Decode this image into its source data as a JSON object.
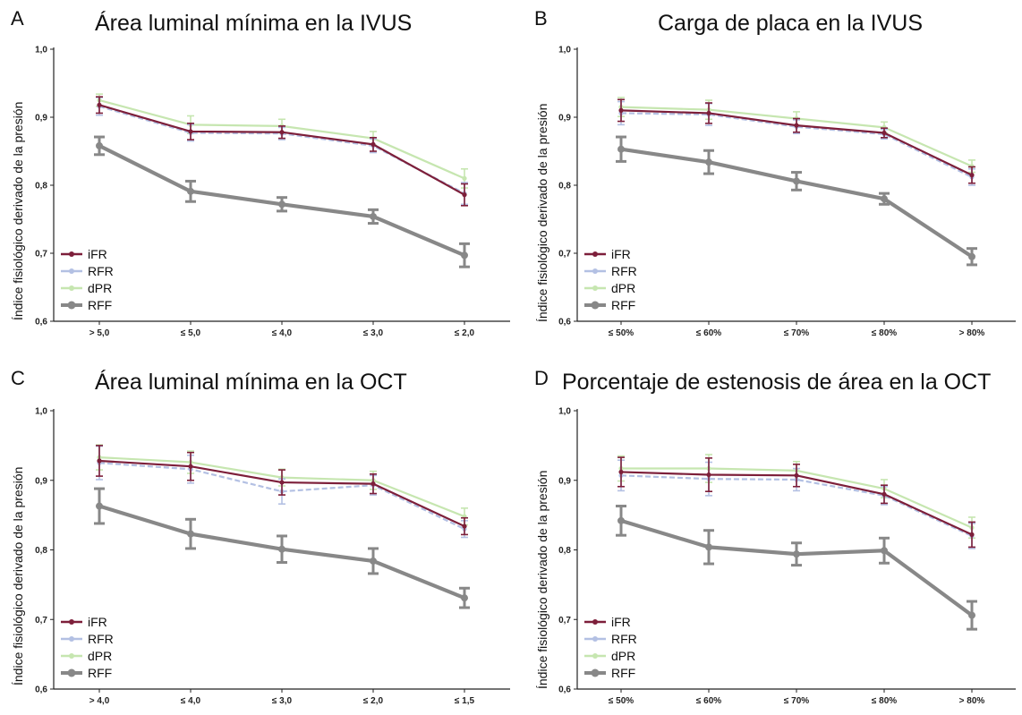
{
  "legend_labels": [
    "iFR",
    "RFR",
    "dPR",
    "RFF"
  ],
  "series_colors": {
    "iFR": "#7d1f3a",
    "RFR": "#b3c0e3",
    "dPR": "#c6e6b0",
    "RFF": "#888888"
  },
  "y_axis_label": "Índice fisiológico derivado de la presión",
  "y_ticks": [
    "0,6",
    "0,7",
    "0,8",
    "0,9",
    "1,0"
  ],
  "chart_data": [
    {
      "type": "line",
      "panel": "A",
      "title": "Área luminal mínima en la IVUS",
      "ylabel": "Índice fisiológico derivado de la presión",
      "ylim": [
        0.6,
        1.0
      ],
      "categories": [
        "> 5,0",
        "≤ 5,0",
        "≤ 4,0",
        "≤ 3,0",
        "≤ 2,0"
      ],
      "legend": "bottom-left",
      "series": [
        {
          "name": "iFR",
          "values": [
            0.918,
            0.879,
            0.878,
            0.86,
            0.786
          ],
          "error": [
            0.012,
            0.012,
            0.009,
            0.01,
            0.016
          ]
        },
        {
          "name": "RFR",
          "values": [
            0.916,
            0.877,
            0.876,
            0.858,
            0.788
          ],
          "error": [
            0.013,
            0.012,
            0.009,
            0.01,
            0.016
          ]
        },
        {
          "name": "dPR",
          "values": [
            0.925,
            0.889,
            0.887,
            0.869,
            0.81
          ],
          "error": [
            0.009,
            0.013,
            0.01,
            0.01,
            0.014
          ]
        },
        {
          "name": "RFF",
          "values": [
            0.858,
            0.791,
            0.772,
            0.754,
            0.697
          ],
          "error": [
            0.013,
            0.015,
            0.01,
            0.01,
            0.017
          ]
        }
      ]
    },
    {
      "type": "line",
      "panel": "B",
      "title": "Carga de placa en la IVUS",
      "ylabel": "Índice fisiológico derivado de la presión",
      "ylim": [
        0.6,
        1.0
      ],
      "categories": [
        "≤ 50%",
        "≤ 60%",
        "≤ 70%",
        "≤ 80%",
        "> 80%"
      ],
      "legend": "bottom-left",
      "series": [
        {
          "name": "iFR",
          "values": [
            0.91,
            0.906,
            0.888,
            0.877,
            0.815
          ],
          "error": [
            0.016,
            0.015,
            0.01,
            0.007,
            0.012
          ]
        },
        {
          "name": "RFR",
          "values": [
            0.906,
            0.904,
            0.886,
            0.875,
            0.812
          ],
          "error": [
            0.017,
            0.016,
            0.01,
            0.007,
            0.012
          ]
        },
        {
          "name": "dPR",
          "values": [
            0.915,
            0.911,
            0.898,
            0.885,
            0.828
          ],
          "error": [
            0.014,
            0.014,
            0.01,
            0.008,
            0.009
          ]
        },
        {
          "name": "RFF",
          "values": [
            0.853,
            0.834,
            0.806,
            0.78,
            0.695
          ],
          "error": [
            0.018,
            0.017,
            0.013,
            0.008,
            0.012
          ]
        }
      ]
    },
    {
      "type": "line",
      "panel": "C",
      "title": "Área luminal mínima en la OCT",
      "ylabel": "Índice fisiológico derivado de la presión",
      "ylim": [
        0.6,
        1.0
      ],
      "categories": [
        "> 4,0",
        "≤ 4,0",
        "≤ 3,0",
        "≤ 2,0",
        "≤ 1,5"
      ],
      "legend": "bottom-left",
      "series": [
        {
          "name": "iFR",
          "values": [
            0.928,
            0.92,
            0.897,
            0.895,
            0.834
          ],
          "error": [
            0.022,
            0.02,
            0.018,
            0.014,
            0.012
          ]
        },
        {
          "name": "RFR",
          "values": [
            0.925,
            0.916,
            0.884,
            0.893,
            0.83
          ],
          "error": [
            0.024,
            0.02,
            0.018,
            0.014,
            0.012
          ]
        },
        {
          "name": "dPR",
          "values": [
            0.933,
            0.926,
            0.904,
            0.9,
            0.848
          ],
          "error": [
            0.018,
            0.016,
            0.012,
            0.013,
            0.012
          ]
        },
        {
          "name": "RFF",
          "values": [
            0.863,
            0.823,
            0.801,
            0.784,
            0.731
          ],
          "error": [
            0.025,
            0.021,
            0.019,
            0.018,
            0.014
          ]
        }
      ]
    },
    {
      "type": "line",
      "panel": "D",
      "title": "Porcentaje de estenosis de área en la OCT",
      "ylabel": "Índice fisiológico derivado de la presión",
      "ylim": [
        0.6,
        1.0
      ],
      "categories": [
        "≤ 50%",
        "≤ 60%",
        "≤ 70%",
        "≤ 80%",
        "> 80%"
      ],
      "legend": "bottom-left",
      "series": [
        {
          "name": "iFR",
          "values": [
            0.912,
            0.908,
            0.907,
            0.88,
            0.822
          ],
          "error": [
            0.021,
            0.024,
            0.016,
            0.013,
            0.018
          ]
        },
        {
          "name": "RFR",
          "values": [
            0.907,
            0.902,
            0.901,
            0.878,
            0.82
          ],
          "error": [
            0.022,
            0.024,
            0.016,
            0.013,
            0.018
          ]
        },
        {
          "name": "dPR",
          "values": [
            0.917,
            0.917,
            0.914,
            0.888,
            0.832
          ],
          "error": [
            0.018,
            0.02,
            0.013,
            0.013,
            0.015
          ]
        },
        {
          "name": "RFF",
          "values": [
            0.842,
            0.804,
            0.794,
            0.799,
            0.706
          ],
          "error": [
            0.021,
            0.024,
            0.016,
            0.018,
            0.02
          ]
        }
      ]
    }
  ]
}
